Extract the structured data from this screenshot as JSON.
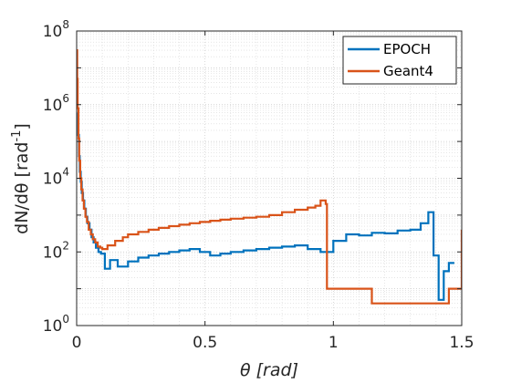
{
  "chart_data": {
    "type": "line",
    "title": "",
    "xlabel": "θ [rad]",
    "ylabel_main": "dN/dθ [rad",
    "ylabel_sup": "-1",
    "ylabel_close": "]",
    "xscale": "linear",
    "yscale": "log",
    "xlim": [
      0,
      1.5
    ],
    "ylim": [
      1,
      100000000
    ],
    "grid": "on (major and minor)",
    "legend_position": "top-right",
    "x_ticks": [
      {
        "value": 0,
        "label": "0"
      },
      {
        "value": 0.5,
        "label": "0.5"
      },
      {
        "value": 1,
        "label": "1"
      },
      {
        "value": 1.5,
        "label": "1.5"
      }
    ],
    "y_ticks": [
      {
        "value": 1,
        "base": "10",
        "exp": "0"
      },
      {
        "value": 100,
        "base": "10",
        "exp": "2"
      },
      {
        "value": 10000,
        "base": "10",
        "exp": "4"
      },
      {
        "value": 1000000,
        "base": "10",
        "exp": "6"
      },
      {
        "value": 100000000,
        "base": "10",
        "exp": "8"
      }
    ],
    "series": [
      {
        "name": "EPOCH",
        "color": "#0072BD",
        "x": [
          0.003,
          0.006,
          0.009,
          0.012,
          0.016,
          0.02,
          0.025,
          0.03,
          0.036,
          0.042,
          0.05,
          0.058,
          0.066,
          0.075,
          0.085,
          0.095,
          0.11,
          0.13,
          0.16,
          0.2,
          0.24,
          0.28,
          0.32,
          0.36,
          0.4,
          0.44,
          0.48,
          0.52,
          0.56,
          0.6,
          0.65,
          0.7,
          0.75,
          0.8,
          0.85,
          0.9,
          0.95,
          1.0,
          1.05,
          1.1,
          1.15,
          1.2,
          1.25,
          1.3,
          1.34,
          1.37,
          1.39,
          1.41,
          1.43,
          1.45
        ],
        "y": [
          600000,
          150000,
          40000,
          15000,
          8000,
          4000,
          2500,
          1500,
          900,
          600,
          400,
          250,
          180,
          130,
          100,
          90,
          35,
          60,
          40,
          55,
          70,
          80,
          90,
          100,
          110,
          120,
          100,
          80,
          90,
          100,
          110,
          120,
          130,
          140,
          150,
          120,
          100,
          200,
          300,
          280,
          330,
          320,
          380,
          400,
          600,
          1200,
          80,
          5,
          30,
          50
        ]
      },
      {
        "name": "Geant4",
        "color": "#D95319",
        "x": [
          0.001,
          0.002,
          0.004,
          0.007,
          0.01,
          0.014,
          0.018,
          0.023,
          0.028,
          0.034,
          0.04,
          0.047,
          0.055,
          0.063,
          0.072,
          0.082,
          0.092,
          0.1,
          0.12,
          0.15,
          0.18,
          0.2,
          0.24,
          0.28,
          0.32,
          0.36,
          0.4,
          0.44,
          0.48,
          0.52,
          0.56,
          0.6,
          0.65,
          0.7,
          0.75,
          0.8,
          0.85,
          0.9,
          0.93,
          0.95,
          0.97,
          0.975,
          1.0,
          1.05,
          1.1,
          1.15,
          1.2,
          1.25,
          1.3,
          1.35,
          1.4,
          1.45,
          1.49,
          1.5
        ],
        "y": [
          30000000,
          5000000,
          800000,
          120000,
          30000,
          10000,
          5000,
          2500,
          1500,
          900,
          650,
          400,
          300,
          220,
          180,
          140,
          130,
          120,
          150,
          200,
          250,
          300,
          350,
          400,
          450,
          500,
          550,
          600,
          650,
          700,
          750,
          800,
          850,
          900,
          1000,
          1200,
          1400,
          1600,
          1800,
          2500,
          2000,
          10,
          10,
          10,
          10,
          4,
          4,
          4,
          4,
          4,
          4,
          10,
          10,
          400
        ]
      }
    ]
  }
}
